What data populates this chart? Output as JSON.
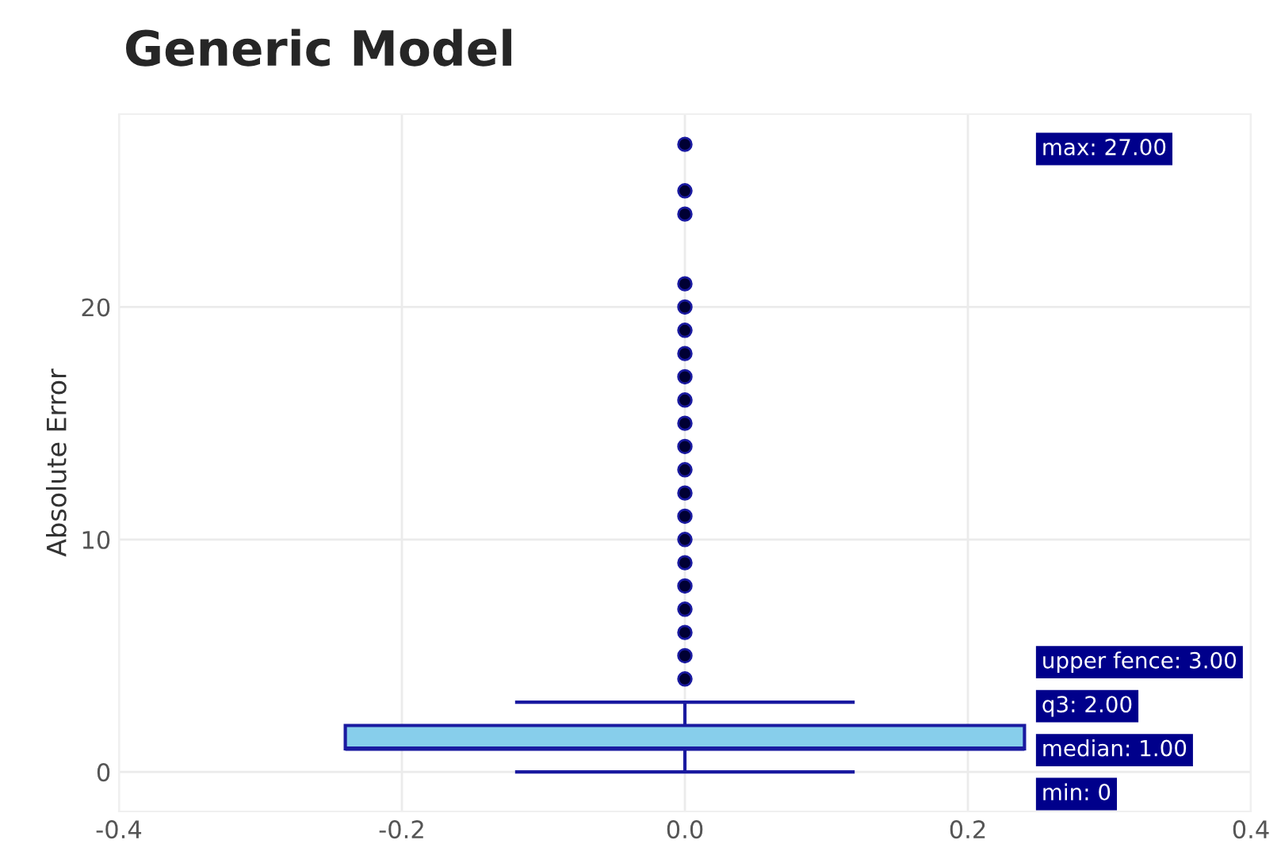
{
  "chart_data": {
    "type": "box",
    "title": "Generic Model",
    "ylabel": "Absolute Error",
    "categories": [
      null
    ],
    "boxes": [
      {
        "low": 0,
        "q1": 1,
        "median": 1,
        "q3": 2,
        "high": 3,
        "outliers": [
          4,
          5,
          6,
          7,
          8,
          9,
          10,
          11,
          12,
          13,
          14,
          15,
          16,
          17,
          18,
          19,
          20,
          21,
          24,
          25,
          27
        ]
      }
    ],
    "color": "#87ceeb",
    "ylim": [
      -1.7,
      28.3
    ],
    "yticks": [
      0,
      10,
      20
    ],
    "grid": true,
    "annotations": [
      "max: 27.00",
      "upper fence: 3.00",
      "q3: 2.00",
      "median: 1.00",
      "min: 0",
      "-0.4",
      "-0.2",
      "0.0",
      "0.2",
      "0.4"
    ]
  }
}
